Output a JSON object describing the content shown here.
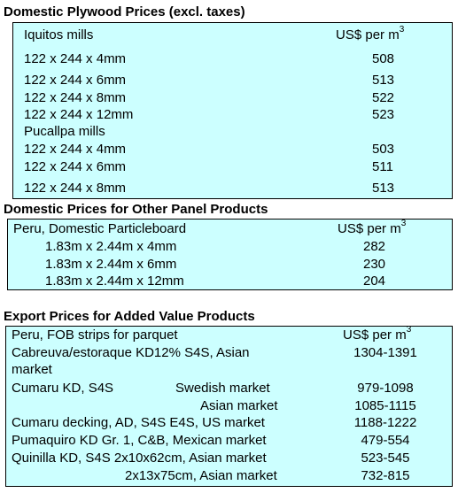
{
  "plywood": {
    "title": "Domestic Plywood Prices (excl. taxes)",
    "header_left": "Iquitos mills",
    "unit_prefix": "US$ per m",
    "unit_sup": "3",
    "rows": [
      {
        "label": "122 x 244 x 4mm",
        "value": "508"
      },
      {
        "label": "122 x 244 x 6mm",
        "value": "513"
      },
      {
        "label": "122 x 244 x 8mm",
        "value": "522"
      },
      {
        "label": "122 x 244 x 12mm",
        "value": "523"
      },
      {
        "label": "Pucallpa mills",
        "value": ""
      },
      {
        "label": "122 x 244 x 4mm",
        "value": "503"
      },
      {
        "label": "122 x 244 x 6mm",
        "value": "511"
      },
      {
        "label": "122 x 244 x 8mm",
        "value": "513"
      }
    ]
  },
  "panel": {
    "title": "Domestic Prices for Other Panel Products",
    "header_left": "Peru, Domestic Particleboard",
    "unit_prefix": "US$ per m",
    "unit_sup": "3",
    "rows": [
      {
        "label": "1.83m x 2.44m x 4mm",
        "value": "282"
      },
      {
        "label": "1.83m x 2.44m x 6mm",
        "value": "230"
      },
      {
        "label": "1.83m x 2.44m x 12mm",
        "value": "204"
      }
    ]
  },
  "export": {
    "title": "Export Prices for Added Value Products",
    "header_left": "Peru, FOB strips for parquet",
    "unit_prefix": "US$ per m",
    "unit_sup": "3",
    "rows": [
      {
        "label": "Cabreuva/estoraque KD12% S4S, Asian",
        "value": "1304-1391"
      },
      {
        "label": "market",
        "value": ""
      },
      {
        "label": "Cumaru KD, S4S",
        "market": "Swedish market",
        "value": "979-1098"
      },
      {
        "label": "",
        "market": "Asian market",
        "value": "1085-1115"
      },
      {
        "label": "Cumaru decking, AD, S4S E4S,  US market",
        "value": "1188-1222"
      },
      {
        "label": "Pumaquiro KD Gr. 1, C&B,  Mexican market",
        "value": "479-554"
      },
      {
        "label": "Quinilla KD, S4S 2x10x62cm,  Asian market",
        "value": "523-545"
      },
      {
        "label": "2x13x75cm, Asian market",
        "value": "732-815"
      }
    ]
  }
}
